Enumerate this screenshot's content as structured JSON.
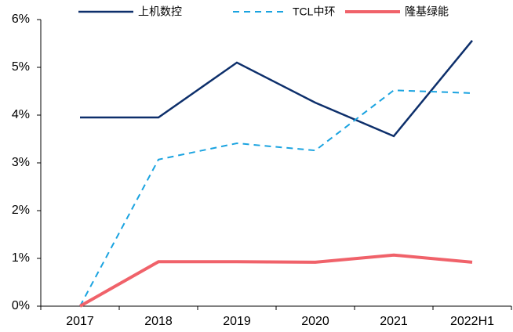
{
  "chart_data": {
    "type": "line",
    "categories": [
      "2017",
      "2018",
      "2019",
      "2020",
      "2021",
      "2022H1"
    ],
    "series": [
      {
        "name": "上机数控",
        "color": "#0d2f6b",
        "dash": false,
        "values": [
          3.95,
          3.95,
          5.1,
          4.26,
          3.56,
          5.56
        ]
      },
      {
        "name": "TCL中环",
        "color": "#1aa3e0",
        "dash": true,
        "values": [
          0,
          3.07,
          3.41,
          3.26,
          4.52,
          4.46
        ]
      },
      {
        "name": "隆基绿能",
        "color": "#f0626a",
        "dash": false,
        "values": [
          0,
          0.93,
          0.93,
          0.92,
          1.07,
          0.92
        ]
      }
    ],
    "ylim": [
      0,
      6
    ],
    "yticks": [
      {
        "value": 0,
        "label": "0%"
      },
      {
        "value": 1,
        "label": "1%"
      },
      {
        "value": 2,
        "label": "2%"
      },
      {
        "value": 3,
        "label": "3%"
      },
      {
        "value": 4,
        "label": "4%"
      },
      {
        "value": 5,
        "label": "5%"
      },
      {
        "value": 6,
        "label": "6%"
      }
    ],
    "grid": false,
    "legend": "top"
  }
}
